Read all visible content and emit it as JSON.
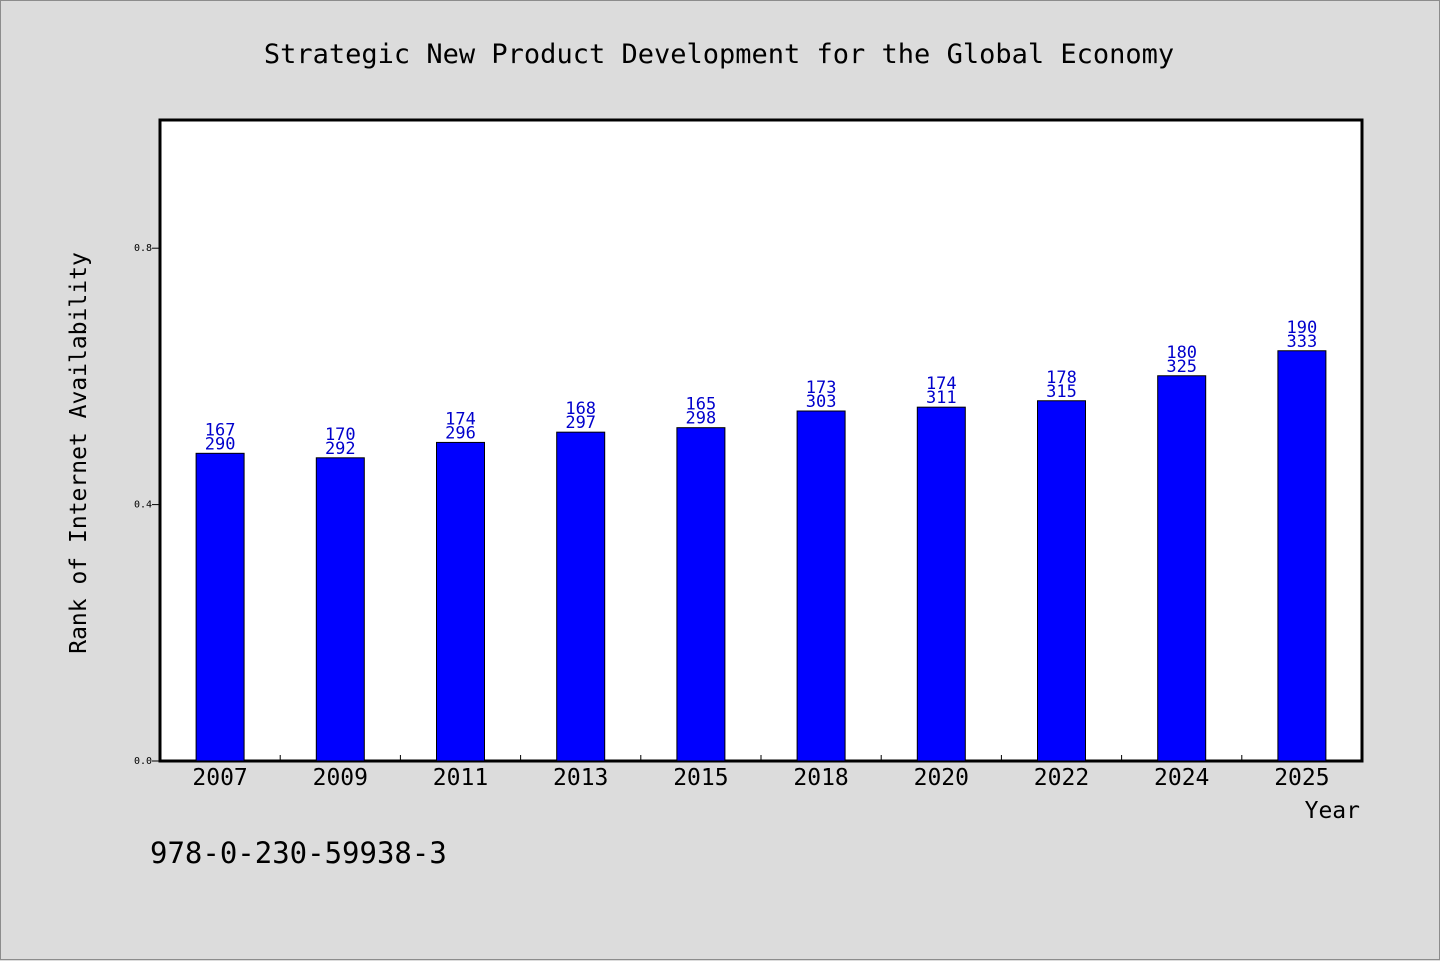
{
  "chart_data": {
    "type": "bar",
    "title": "Strategic New Product Development for the Global Economy",
    "xlabel": "Year",
    "ylabel": "Rank of Internet Availability",
    "categories": [
      "2007",
      "2009",
      "2011",
      "2013",
      "2015",
      "2018",
      "2020",
      "2022",
      "2024",
      "2025"
    ],
    "series": [
      {
        "values": [
          0.48,
          0.473,
          0.497,
          0.513,
          0.52,
          0.546,
          0.552,
          0.562,
          0.601,
          0.64
        ],
        "labels_top": [
          "167",
          "170",
          "174",
          "168",
          "165",
          "173",
          "174",
          "178",
          "180",
          "190"
        ],
        "labels_bottom": [
          "290",
          "292",
          "296",
          "297",
          "298",
          "303",
          "311",
          "315",
          "325",
          "333"
        ]
      }
    ],
    "yticks": [
      "0.0",
      "0.4",
      "0.8"
    ],
    "ylim": [
      0,
      1.0
    ],
    "grid": false,
    "bar_color": "#0000ff",
    "label_color": "#0000cc",
    "background_color": "#dcdcdc",
    "plot_background_color": "#ffffff"
  },
  "footer": {
    "isbn": "978-0-230-59938-3"
  }
}
